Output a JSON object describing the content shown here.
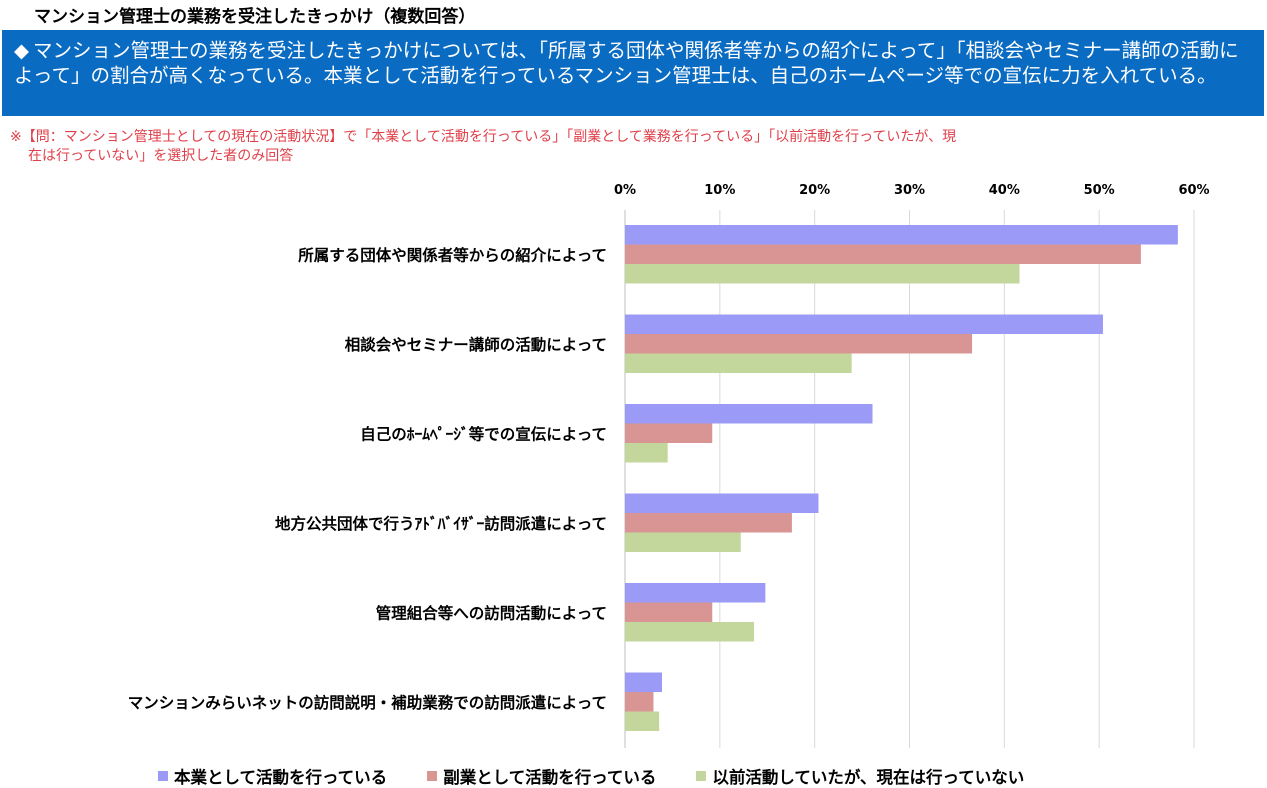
{
  "page_title": "マンション管理士の業務を受注したきっかけ（複数回答）",
  "summary": {
    "bullet": "◆",
    "text": "マンション管理士の業務を受注したきっかけについては、「所属する団体や関係者等からの紹介によって」「相談会やセミナー講師の活動によって」の割合が高くなっている。本業として活動を行っているマンション管理士は、自己のホームページ等での宣伝に力を入れている。"
  },
  "note": {
    "line1": "※【問：マンション管理士としての現在の活動状況】で「本業として活動を行っている」「副業として業務を行っている」「以前活動を行っていたが、現",
    "line2": "在は行っていない」を選択した者のみ回答"
  },
  "chart_data": {
    "type": "bar",
    "orientation": "horizontal",
    "categories": [
      "所属する団体や関係者等からの紹介によって",
      "相談会やセミナー講師の活動によって",
      "自己のﾎｰﾑﾍﾟｰｼﾞ等での宣伝によって",
      "地方公共団体で行うｱﾄﾞﾊﾞｲｻﾞｰ訪問派遣によって",
      "管理組合等への訪問活動によって",
      "マンションみらいネットの訪問説明・補助業務での訪問派遣によって"
    ],
    "series": [
      {
        "name": "本業として活動を行っている",
        "color": "#9b9bf7",
        "values": [
          58.3,
          50.4,
          26.1,
          20.4,
          14.8,
          3.9
        ]
      },
      {
        "name": "副業として活動を行っている",
        "color": "#d99594",
        "values": [
          54.4,
          36.6,
          9.2,
          17.6,
          9.2,
          3.0
        ]
      },
      {
        "name": "以前活動していたが、現在は行っていない",
        "color": "#c3d69b",
        "values": [
          41.6,
          23.9,
          4.5,
          12.2,
          13.6,
          3.6
        ]
      }
    ],
    "xlim": [
      0,
      60
    ],
    "xticks": [
      "0%",
      "10%",
      "20%",
      "30%",
      "40%",
      "50%",
      "60%"
    ],
    "grid": true,
    "legend_position": "bottom"
  }
}
